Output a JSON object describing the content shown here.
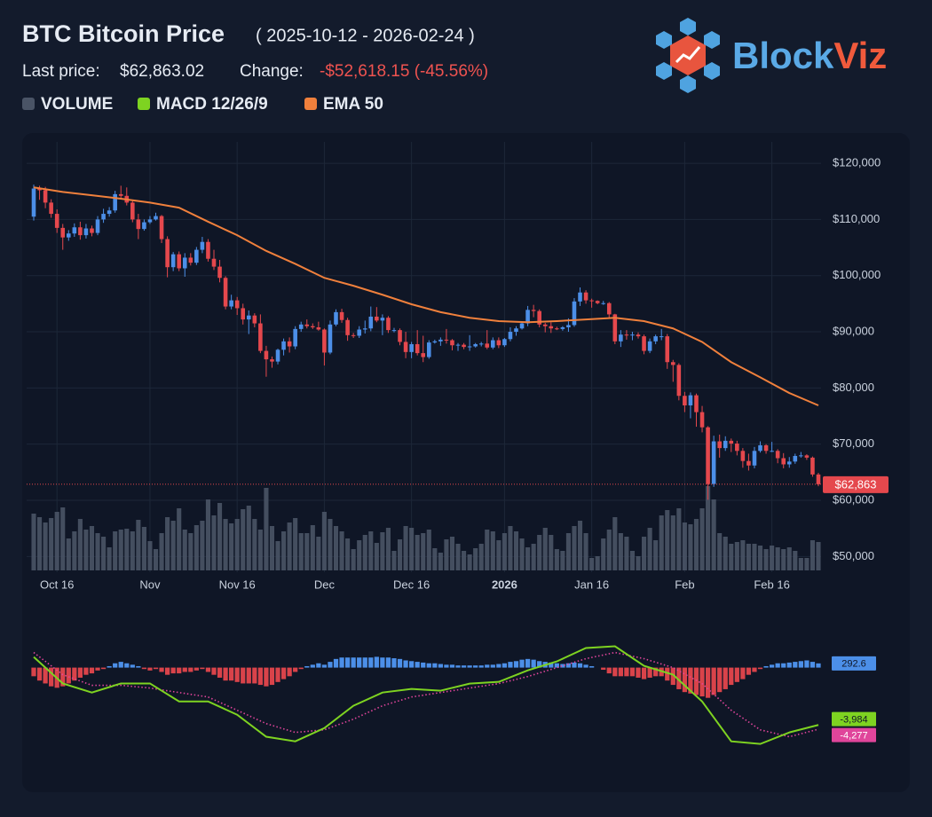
{
  "header": {
    "title": "BTC Bitcoin Price",
    "subtitle": "( 2025-10-12 - 2026-02-24 )",
    "last_price_label": "Last price:",
    "last_price": "$62,863.02",
    "change_label": "Change:",
    "change": "-$52,618.15 (-45.56%)"
  },
  "logo": {
    "text_a": "Block",
    "text_b": "Viz"
  },
  "chart_data": {
    "type": "candlestick",
    "up_color": "#4c8fe8",
    "down_color": "#e5484d",
    "grid": true,
    "ylim": [
      48000,
      123800
    ],
    "yticks": [
      {
        "value": 50000,
        "label": "$50,000"
      },
      {
        "value": 60000,
        "label": "$60,000"
      },
      {
        "value": 70000,
        "label": "$70,000"
      },
      {
        "value": 80000,
        "label": "$80,000"
      },
      {
        "value": 90000,
        "label": "$90,000"
      },
      {
        "value": 100000,
        "label": "$100,000"
      },
      {
        "value": 110000,
        "label": "$110,000"
      },
      {
        "value": 120000,
        "label": "$120,000"
      }
    ],
    "xticks": [
      {
        "value": 4,
        "label": "Oct 16"
      },
      {
        "value": 20,
        "label": "Nov"
      },
      {
        "value": 35,
        "label": "Nov 16"
      },
      {
        "value": 50,
        "label": "Dec"
      },
      {
        "value": 65,
        "label": "Dec 16"
      },
      {
        "value": 81,
        "label": "2026",
        "bold": true
      },
      {
        "value": 96,
        "label": "Jan 16"
      },
      {
        "value": 112,
        "label": "Feb"
      },
      {
        "value": 127,
        "label": "Feb 16"
      }
    ],
    "last_label": "$62,863",
    "ohlc": [
      [
        110500,
        116200,
        109800,
        115500
      ],
      [
        115500,
        116000,
        113500,
        115200
      ],
      [
        115200,
        115800,
        112000,
        113000
      ],
      [
        113000,
        113600,
        110300,
        111000
      ],
      [
        111000,
        111800,
        107600,
        108500
      ],
      [
        108500,
        109200,
        104600,
        106800
      ],
      [
        106800,
        108100,
        106200,
        107500
      ],
      [
        107500,
        109300,
        106900,
        108600
      ],
      [
        108600,
        109600,
        106400,
        107200
      ],
      [
        107200,
        109200,
        106600,
        108400
      ],
      [
        108400,
        108900,
        107000,
        107600
      ],
      [
        107600,
        110600,
        107200,
        110000
      ],
      [
        110000,
        111900,
        109400,
        111000
      ],
      [
        111000,
        112200,
        110500,
        111600
      ],
      [
        111600,
        115100,
        111200,
        114500
      ],
      [
        114500,
        116000,
        113800,
        114200
      ],
      [
        114200,
        115700,
        112500,
        113000
      ],
      [
        113000,
        113500,
        109500,
        110000
      ],
      [
        110000,
        111000,
        106500,
        108300
      ],
      [
        108300,
        110000,
        108000,
        109500
      ],
      [
        109500,
        110600,
        109200,
        110000
      ],
      [
        110000,
        111200,
        109800,
        110600
      ],
      [
        110600,
        110800,
        105800,
        106500
      ],
      [
        106500,
        107000,
        99700,
        101500
      ],
      [
        101500,
        104200,
        100800,
        103800
      ],
      [
        103800,
        104300,
        100800,
        101300
      ],
      [
        101300,
        104000,
        99800,
        103200
      ],
      [
        103200,
        104000,
        101800,
        102300
      ],
      [
        102300,
        105100,
        101900,
        104600
      ],
      [
        104600,
        106900,
        104000,
        106000
      ],
      [
        106000,
        106500,
        102500,
        103000
      ],
      [
        103000,
        104600,
        101000,
        101600
      ],
      [
        101600,
        102800,
        98800,
        99600
      ],
      [
        99600,
        99900,
        94000,
        94500
      ],
      [
        94500,
        96600,
        94000,
        95600
      ],
      [
        95600,
        96200,
        93000,
        94200
      ],
      [
        94200,
        95000,
        91300,
        92200
      ],
      [
        92200,
        93800,
        89600,
        92900
      ],
      [
        92900,
        93300,
        90800,
        91500
      ],
      [
        91500,
        93100,
        86200,
        86600
      ],
      [
        86600,
        87500,
        82000,
        85100
      ],
      [
        85100,
        85600,
        83600,
        84700
      ],
      [
        84700,
        87000,
        84200,
        86800
      ],
      [
        86800,
        88800,
        85800,
        88300
      ],
      [
        88300,
        89000,
        86300,
        87400
      ],
      [
        87400,
        91000,
        86900,
        90500
      ],
      [
        90500,
        91800,
        90000,
        91300
      ],
      [
        91300,
        92200,
        90600,
        91000
      ],
      [
        91000,
        91500,
        90500,
        90800
      ],
      [
        90800,
        91800,
        90200,
        90400
      ],
      [
        90400,
        90600,
        84000,
        86300
      ],
      [
        86300,
        92000,
        86000,
        91300
      ],
      [
        91300,
        94000,
        91000,
        93500
      ],
      [
        93500,
        94100,
        91600,
        92100
      ],
      [
        92100,
        92500,
        88400,
        89400
      ],
      [
        89400,
        89800,
        88900,
        89300
      ],
      [
        89300,
        91000,
        88900,
        90400
      ],
      [
        90400,
        92000,
        89700,
        90600
      ],
      [
        90600,
        94500,
        90100,
        92700
      ],
      [
        92700,
        94400,
        91700,
        92000
      ],
      [
        92000,
        93100,
        89400,
        92500
      ],
      [
        92500,
        92800,
        89800,
        90300
      ],
      [
        90300,
        90700,
        89900,
        90300
      ],
      [
        90300,
        90600,
        87600,
        88200
      ],
      [
        88200,
        90000,
        85300,
        86400
      ],
      [
        86400,
        88200,
        85300,
        87800
      ],
      [
        87800,
        90300,
        85800,
        86200
      ],
      [
        86200,
        89300,
        84600,
        85500
      ],
      [
        85500,
        88500,
        85200,
        88100
      ],
      [
        88100,
        88600,
        87900,
        88300
      ],
      [
        88300,
        89000,
        87500,
        88600
      ],
      [
        88600,
        90500,
        87900,
        88500
      ],
      [
        88500,
        88700,
        86700,
        87600
      ],
      [
        87600,
        88000,
        86600,
        87700
      ],
      [
        87700,
        88000,
        86900,
        87300
      ],
      [
        87300,
        89400,
        86600,
        87400
      ],
      [
        87400,
        88000,
        87200,
        87800
      ],
      [
        87800,
        88200,
        87400,
        87900
      ],
      [
        87900,
        90300,
        86900,
        87200
      ],
      [
        87200,
        89000,
        86900,
        88500
      ],
      [
        88500,
        89000,
        87100,
        87600
      ],
      [
        87600,
        88900,
        87300,
        88700
      ],
      [
        88700,
        90800,
        88300,
        90000
      ],
      [
        90000,
        91000,
        89300,
        90600
      ],
      [
        90600,
        91800,
        90400,
        91500
      ],
      [
        91500,
        94600,
        91000,
        93900
      ],
      [
        93900,
        94800,
        92600,
        93700
      ],
      [
        93700,
        94000,
        90800,
        91300
      ],
      [
        91300,
        91600,
        89900,
        91000
      ],
      [
        91000,
        91700,
        89800,
        90600
      ],
      [
        90600,
        90900,
        90300,
        90500
      ],
      [
        90500,
        91000,
        90200,
        90800
      ],
      [
        90800,
        92400,
        90000,
        91200
      ],
      [
        91200,
        96000,
        90900,
        95400
      ],
      [
        95400,
        97900,
        94600,
        97000
      ],
      [
        97000,
        97400,
        95000,
        95600
      ],
      [
        95600,
        95900,
        94300,
        95500
      ],
      [
        95500,
        95600,
        94900,
        95100
      ],
      [
        95100,
        95500,
        94800,
        95100
      ],
      [
        95100,
        95300,
        92400,
        93100
      ],
      [
        93100,
        93200,
        87800,
        88300
      ],
      [
        88300,
        90300,
        87300,
        89500
      ],
      [
        89500,
        90300,
        88600,
        89400
      ],
      [
        89400,
        90000,
        88500,
        89500
      ],
      [
        89500,
        89900,
        88800,
        89200
      ],
      [
        89200,
        89500,
        86000,
        86600
      ],
      [
        86600,
        88800,
        86200,
        88300
      ],
      [
        88300,
        89500,
        87800,
        89200
      ],
      [
        89200,
        90500,
        88500,
        89200
      ],
      [
        89200,
        89600,
        83400,
        84600
      ],
      [
        84600,
        85000,
        81100,
        84100
      ],
      [
        84100,
        84400,
        77800,
        78600
      ],
      [
        78600,
        79300,
        75700,
        76900
      ],
      [
        76900,
        79200,
        74600,
        78700
      ],
      [
        78700,
        79000,
        73100,
        75700
      ],
      [
        75700,
        76800,
        72100,
        73000
      ],
      [
        73000,
        73200,
        60100,
        62900
      ],
      [
        62900,
        71500,
        62400,
        70500
      ],
      [
        70500,
        71700,
        67600,
        69300
      ],
      [
        69300,
        71400,
        68800,
        70600
      ],
      [
        70600,
        71000,
        68600,
        70100
      ],
      [
        70100,
        70600,
        68000,
        68800
      ],
      [
        68800,
        69300,
        65800,
        67000
      ],
      [
        67000,
        68300,
        65300,
        66200
      ],
      [
        66200,
        69500,
        65700,
        68800
      ],
      [
        68800,
        70500,
        68500,
        69800
      ],
      [
        69800,
        70000,
        68300,
        68800
      ],
      [
        68800,
        70400,
        68600,
        68800
      ],
      [
        68800,
        69100,
        66600,
        67500
      ],
      [
        67500,
        68400,
        65700,
        66400
      ],
      [
        66400,
        67700,
        65800,
        66900
      ],
      [
        66900,
        68300,
        66500,
        67900
      ],
      [
        67900,
        68600,
        67600,
        68000
      ],
      [
        68000,
        68200,
        67200,
        67600
      ],
      [
        67600,
        67800,
        64200,
        64600
      ],
      [
        64600,
        64900,
        62500,
        62863.02
      ]
    ],
    "volume": {
      "name": "VOLUME",
      "color": "#4a5466",
      "ylim": [
        0,
        100
      ],
      "values": [
        64,
        60,
        54,
        59,
        66,
        71,
        36,
        44,
        58,
        46,
        50,
        42,
        38,
        26,
        44,
        46,
        47,
        44,
        57,
        49,
        33,
        24,
        42,
        60,
        56,
        70,
        46,
        42,
        51,
        56,
        80,
        62,
        76,
        58,
        53,
        58,
        69,
        73,
        58,
        46,
        93,
        50,
        33,
        44,
        54,
        59,
        42,
        42,
        51,
        38,
        66,
        58,
        50,
        44,
        36,
        24,
        34,
        40,
        44,
        31,
        43,
        48,
        22,
        35,
        50,
        48,
        40,
        42,
        46,
        25,
        20,
        35,
        38,
        30,
        22,
        18,
        25,
        30,
        46,
        44,
        34,
        42,
        50,
        44,
        36,
        26,
        30,
        40,
        48,
        40,
        24,
        22,
        42,
        50,
        56,
        42,
        14,
        16,
        36,
        46,
        60,
        42,
        38,
        22,
        16,
        38,
        48,
        34,
        62,
        68,
        62,
        70,
        54,
        52,
        58,
        70,
        95,
        80,
        42,
        38,
        30,
        32,
        34,
        30,
        30,
        28,
        24,
        28,
        26,
        24,
        26,
        22,
        14,
        14,
        34,
        32
      ]
    },
    "ema": {
      "name": "EMA 50",
      "color": "#f0803c",
      "x": [
        0,
        5,
        10,
        15,
        20,
        25,
        30,
        35,
        40,
        45,
        50,
        55,
        60,
        65,
        70,
        75,
        80,
        85,
        90,
        95,
        100,
        105,
        110,
        115,
        120,
        125,
        130,
        135
      ],
      "values": [
        115700,
        114900,
        114300,
        113700,
        113000,
        112100,
        109600,
        107200,
        104400,
        102100,
        99600,
        98200,
        96600,
        94900,
        93500,
        92500,
        91900,
        91700,
        91900,
        92200,
        92500,
        91900,
        90600,
        88200,
        84600,
        81900,
        79100,
        76900
      ]
    },
    "macd_ylim": [
      -6000,
      2500
    ],
    "macd": {
      "name": "MACD 12/26/9",
      "color": "#7ed321",
      "last_label": "-3,984",
      "x": [
        0,
        5,
        10,
        15,
        20,
        25,
        30,
        35,
        40,
        45,
        50,
        55,
        60,
        65,
        70,
        75,
        80,
        85,
        90,
        95,
        100,
        105,
        110,
        115,
        120,
        125,
        130,
        135
      ],
      "values": [
        740,
        -1100,
        -1730,
        -1100,
        -1100,
        -2350,
        -2350,
        -3270,
        -4800,
        -5120,
        -4200,
        -2650,
        -1730,
        -1480,
        -1600,
        -1110,
        -990,
        -190,
        430,
        1360,
        1480,
        120,
        -490,
        -2350,
        -5120,
        -5300,
        -4500,
        -3984
      ]
    },
    "signal": {
      "color": "#e0459b",
      "last_label": "-4,277",
      "x": [
        0,
        5,
        10,
        15,
        20,
        25,
        30,
        35,
        40,
        45,
        50,
        55,
        60,
        65,
        70,
        75,
        80,
        85,
        90,
        95,
        100,
        105,
        110,
        115,
        120,
        125,
        130,
        135
      ],
      "values": [
        1050,
        -490,
        -1230,
        -1230,
        -1420,
        -1730,
        -2040,
        -2960,
        -3890,
        -4500,
        -4320,
        -3580,
        -2650,
        -2040,
        -1730,
        -1420,
        -1110,
        -620,
        0,
        620,
        1050,
        620,
        0,
        -1110,
        -2960,
        -4320,
        -4800,
        -4277
      ]
    },
    "histogram": {
      "up_color": "#4c8fe8",
      "down_color": "#d9434a",
      "last_label": "292.6",
      "values": [
        -600,
        -900,
        -1100,
        -1300,
        -1400,
        -1300,
        -1100,
        -900,
        -700,
        -500,
        -400,
        -200,
        -100,
        100,
        300,
        400,
        300,
        200,
        100,
        -100,
        -200,
        -100,
        -300,
        -500,
        -400,
        -400,
        -300,
        -300,
        -200,
        -100,
        -300,
        -500,
        -700,
        -900,
        -900,
        -1000,
        -1100,
        -1100,
        -1100,
        -1200,
        -1300,
        -1200,
        -1000,
        -800,
        -600,
        -300,
        -100,
        100,
        200,
        300,
        200,
        400,
        600,
        700,
        700,
        700,
        700,
        700,
        700,
        750,
        700,
        700,
        650,
        600,
        500,
        450,
        400,
        350,
        300,
        300,
        250,
        200,
        200,
        150,
        150,
        150,
        150,
        150,
        200,
        200,
        250,
        300,
        400,
        450,
        550,
        600,
        550,
        450,
        400,
        350,
        300,
        250,
        300,
        350,
        300,
        200,
        100,
        0,
        -150,
        -400,
        -600,
        -600,
        -600,
        -600,
        -700,
        -800,
        -700,
        -600,
        -600,
        -900,
        -1200,
        -1500,
        -1700,
        -1800,
        -1900,
        -2000,
        -2100,
        -1900,
        -1700,
        -1500,
        -1200,
        -1000,
        -800,
        -500,
        -300,
        -100,
        100,
        200,
        300,
        300,
        350,
        400,
        450,
        500,
        400,
        292.6
      ]
    }
  }
}
